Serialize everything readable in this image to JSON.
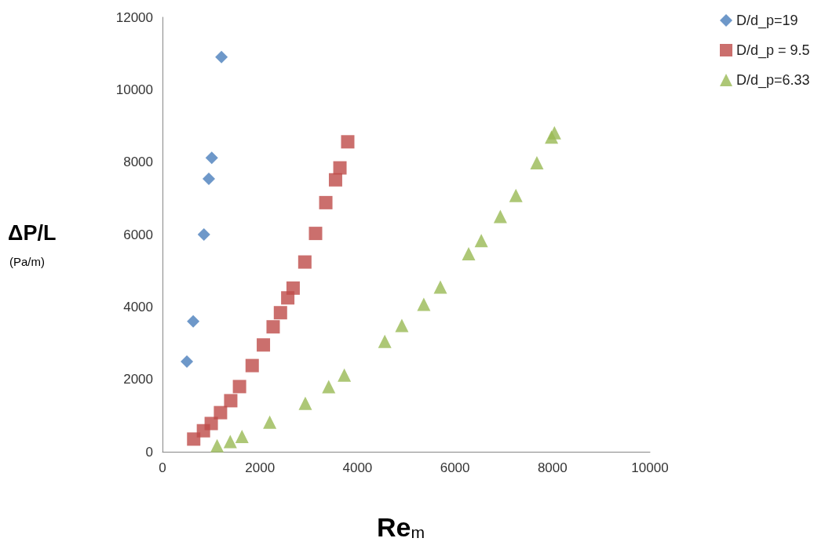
{
  "chart_data": {
    "type": "scatter",
    "xlabel": "Re$_{m}$",
    "ylabel": "ΔP/L\n(Pa/m)",
    "xlim": [
      0,
      10000
    ],
    "xticks": [
      0,
      2000,
      4000,
      6000,
      8000,
      10000
    ],
    "ylim": [
      0,
      12000
    ],
    "yticks": [
      0,
      2000,
      4000,
      6000,
      8000,
      10000,
      12000
    ],
    "grid": false,
    "legend": "top right",
    "series": [
      {
        "name": "D/d_p=19",
        "color": "#4a7ebb",
        "marker": "diamond",
        "x": [
          500,
          630,
          850,
          950,
          1010,
          1210
        ],
        "values": [
          2490,
          3600,
          6000,
          7540,
          8120,
          10900
        ]
      },
      {
        "name": "D/d_p = 9.5",
        "color": "#be4b48",
        "marker": "square",
        "x": [
          640,
          840,
          1000,
          1190,
          1400,
          1580,
          1840,
          2070,
          2270,
          2420,
          2570,
          2680,
          2920,
          3140,
          3350,
          3550,
          3640,
          3800
        ],
        "values": [
          350,
          580,
          780,
          1080,
          1410,
          1800,
          2380,
          2950,
          3450,
          3840,
          4250,
          4520,
          5240,
          6030,
          6880,
          7510,
          7840,
          8560
        ]
      },
      {
        "name": "D/d_p=6.33",
        "color": "#98b954",
        "marker": "triangle",
        "x": [
          1120,
          1390,
          1630,
          2200,
          2930,
          3410,
          3730,
          4560,
          4910,
          5360,
          5700,
          6280,
          6540,
          6930,
          7250,
          7680,
          7980,
          8040
        ],
        "values": [
          170,
          280,
          420,
          820,
          1340,
          1800,
          2120,
          3050,
          3490,
          4070,
          4550,
          5470,
          5830,
          6500,
          7080,
          7980,
          8690,
          8810
        ]
      }
    ]
  }
}
